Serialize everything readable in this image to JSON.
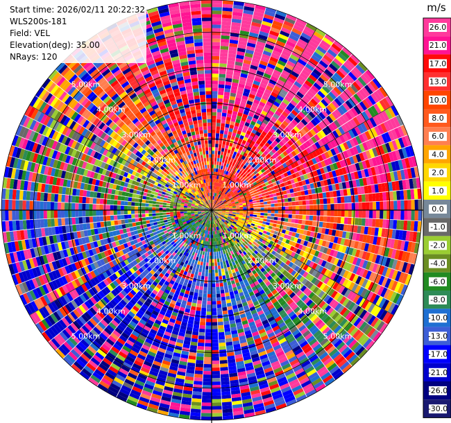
{
  "info": {
    "start_time": "Start time: 2026/02/11 20:22:32",
    "instrument": "WLS200s-181",
    "field": "Field: VEL",
    "elevation": "Elevation(deg): 35.00",
    "nrays": "NRays: 120"
  },
  "chart_data": {
    "type": "heatmap",
    "projection": "polar-ppi",
    "field": "VEL",
    "units": "m/s",
    "n_rays": 120,
    "elevation_deg": 35.0,
    "range_rings_km": [
      1.0,
      2.0,
      3.0,
      4.0,
      5.0
    ],
    "range_ring_labels": [
      "1.00km",
      "2.00km",
      "3.00km",
      "4.00km",
      "5.00km"
    ],
    "max_range_km": 5.9,
    "crosshair": true,
    "spokes_deg": [
      0,
      30,
      60,
      90,
      120,
      150,
      180,
      210,
      240,
      270,
      300,
      330
    ],
    "colorbar": {
      "title": "m/s",
      "tick_labels": [
        "26.0",
        "21.0",
        "17.0",
        "13.0",
        "10.0",
        "8.0",
        "6.0",
        "4.0",
        "2.0",
        "1.0",
        "0.0",
        "-1.0",
        "-2.0",
        "-4.0",
        "-6.0",
        "-8.0",
        "-10.0",
        "-13.0",
        "-17.0",
        "-21.0",
        "-26.0",
        "-30.0"
      ],
      "boundaries": [
        26,
        21,
        17,
        13,
        10,
        8,
        6,
        4,
        2,
        1,
        0,
        -1,
        -2,
        -4,
        -6,
        -8,
        -10,
        -13,
        -17,
        -21,
        -26,
        -30
      ],
      "colors": [
        "#ff3a9c",
        "#ff1493",
        "#ff0a0a",
        "#ff3030",
        "#ff4500",
        "#ff5a1e",
        "#ff7f50",
        "#ffa500",
        "#ffd700",
        "#ffff00",
        "#778899",
        "#696969",
        "#9acd32",
        "#6b8e23",
        "#228b22",
        "#2e8b57",
        "#1e6fd2",
        "#3d5ed6",
        "#0000ff",
        "#0000cd",
        "#000080",
        "#191970"
      ]
    },
    "velocity_pattern": {
      "approach_sector_deg": 210,
      "recede_sector_deg": 30,
      "max_abs_velocity_ms": 26
    }
  }
}
